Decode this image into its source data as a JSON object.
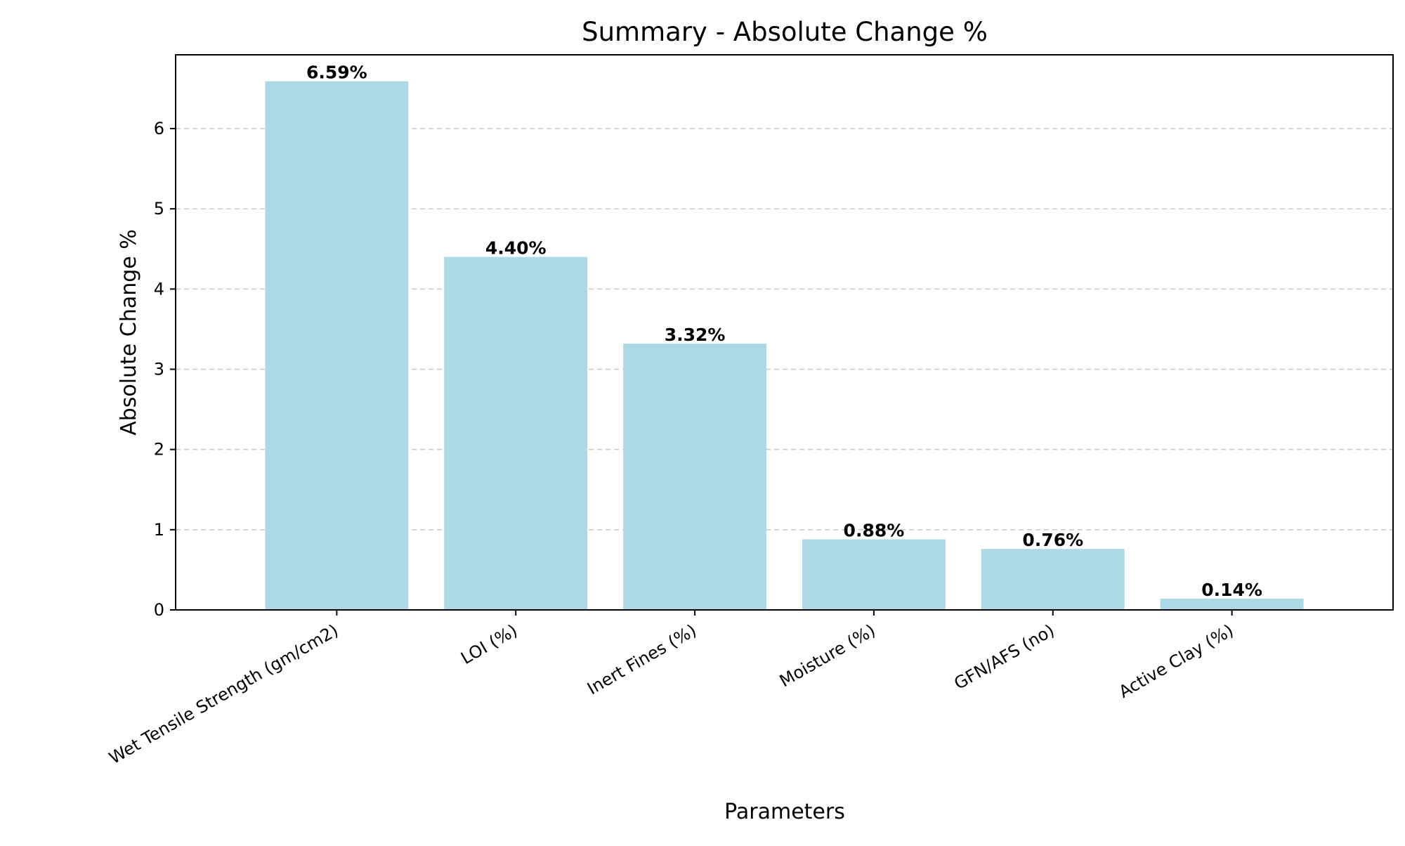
{
  "chart_data": {
    "type": "bar",
    "title": "Summary - Absolute Change %",
    "xlabel": "Parameters",
    "ylabel": "Absolute Change %",
    "categories": [
      "Wet Tensile Strength (gm/cm2)",
      "LOI (%)",
      "Inert Fines (%)",
      "Moisture (%)",
      "GFN/AFS (no)",
      "Active Clay (%)"
    ],
    "values": [
      6.59,
      4.4,
      3.32,
      0.88,
      0.76,
      0.14
    ],
    "value_labels": [
      "6.59%",
      "4.40%",
      "3.32%",
      "0.88%",
      "0.76%",
      "0.14%"
    ],
    "ylim": [
      0,
      6.92
    ],
    "yticks": [
      0,
      1,
      2,
      3,
      4,
      5,
      6
    ],
    "ytick_labels": [
      "0",
      "1",
      "2",
      "3",
      "4",
      "5",
      "6"
    ],
    "grid": {
      "y": true,
      "x": false,
      "style": "dashed"
    },
    "legend": "none",
    "colors": {
      "bar": "#add8e6",
      "grid": "#c8c8c8",
      "axis": "#000000",
      "text": "#000000"
    }
  }
}
